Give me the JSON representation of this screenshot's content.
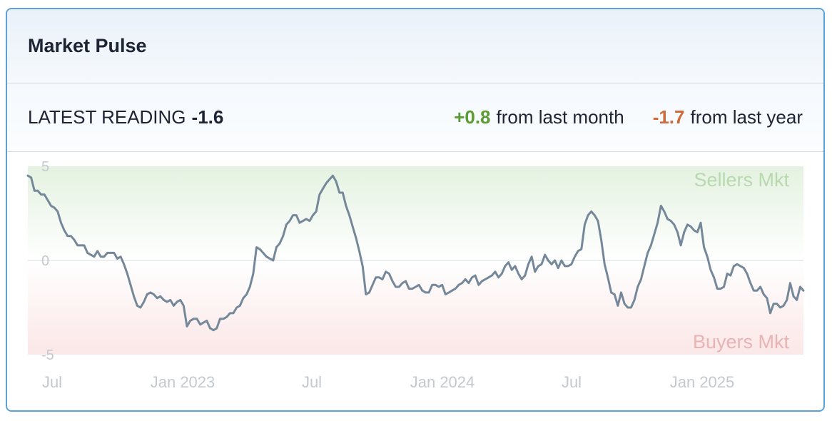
{
  "card": {
    "title": "Market Pulse"
  },
  "stats": {
    "latest_label": "LATEST READING",
    "latest_value": "-1.6",
    "month_change": "+0.8",
    "month_text": "from last month",
    "year_change": "-1.7",
    "year_text": "from last year"
  },
  "colors": {
    "border": "#5aa2d8",
    "line": "#75889a",
    "positive": "#5b9b33",
    "negative": "#d06a3a",
    "sellers_zone": "#e6f3e3",
    "buyers_zone": "#fbe9e9"
  },
  "chart_data": {
    "type": "line",
    "ylim": [
      -5,
      5
    ],
    "y_ticks": [
      "5",
      "0",
      "-5"
    ],
    "x_ticks": [
      "Jul",
      "Jan 2023",
      "Jul",
      "Jan 2024",
      "Jul",
      "Jan 2025"
    ],
    "zone_labels": {
      "top": "Sellers Mkt",
      "bottom": "Buyers Mkt"
    },
    "series": [
      {
        "values": [
          4.5,
          4.4,
          3.7,
          3.7,
          3.5,
          3.5,
          3.2,
          2.9,
          2.8,
          2.6,
          2.0,
          1.6,
          1.3,
          1.3,
          1.1,
          0.8,
          0.8,
          0.8,
          0.4,
          0.3,
          0.2,
          0.5,
          0.2,
          0.2,
          0.4,
          0.4,
          0.4,
          0.1,
          0.2,
          -0.2,
          -0.7,
          -1.3,
          -1.9,
          -2.4,
          -2.5,
          -2.2,
          -1.8,
          -1.7,
          -1.8,
          -2.0,
          -1.9,
          -2.1,
          -2.2,
          -2.1,
          -2.4,
          -2.2,
          -2.1,
          -2.4,
          -3.5,
          -3.2,
          -3.1,
          -3.1,
          -3.4,
          -3.3,
          -3.2,
          -3.6,
          -3.7,
          -3.6,
          -3.1,
          -3.1,
          -3.0,
          -2.8,
          -2.8,
          -2.5,
          -2.4,
          -2.0,
          -1.8,
          -1.4,
          -0.7,
          0.7,
          0.6,
          0.4,
          0.2,
          0.1,
          0.0,
          0.7,
          0.9,
          1.3,
          1.9,
          2.1,
          2.4,
          2.4,
          2.0,
          2.1,
          2.2,
          2.1,
          2.4,
          2.6,
          3.5,
          3.8,
          4.1,
          4.3,
          4.5,
          4.2,
          3.6,
          3.6,
          2.9,
          2.4,
          1.8,
          1.2,
          0.5,
          -0.3,
          -1.8,
          -1.7,
          -1.3,
          -0.9,
          -0.9,
          -1.0,
          -0.6,
          -0.7,
          -1.1,
          -1.4,
          -1.4,
          -1.2,
          -1.1,
          -1.5,
          -1.5,
          -1.4,
          -1.3,
          -1.6,
          -1.7,
          -1.7,
          -1.3,
          -1.3,
          -1.4,
          -1.3,
          -1.8,
          -1.7,
          -1.6,
          -1.5,
          -1.3,
          -1.2,
          -1.0,
          -1.2,
          -0.9,
          -0.8,
          -1.3,
          -1.1,
          -1.0,
          -0.9,
          -0.8,
          -0.6,
          -0.9,
          -0.7,
          -0.3,
          -0.1,
          -0.5,
          -0.3,
          -0.7,
          -1.0,
          -0.8,
          -0.2,
          0.2,
          -0.6,
          -0.3,
          -0.2,
          0.3,
          0.0,
          -0.2,
          0.0,
          -0.4,
          0.0,
          -0.3,
          -0.3,
          -0.2,
          0.2,
          0.5,
          0.6,
          1.9,
          2.4,
          2.6,
          2.4,
          2.1,
          1.1,
          -0.2,
          -0.9,
          -1.7,
          -1.8,
          -2.4,
          -1.7,
          -2.3,
          -2.5,
          -2.5,
          -2.1,
          -1.4,
          -1.0,
          -0.3,
          0.4,
          0.8,
          1.4,
          2.0,
          2.9,
          2.6,
          2.2,
          2.1,
          1.9,
          1.5,
          0.8,
          1.5,
          1.9,
          1.8,
          1.6,
          1.5,
          2.0,
          0.7,
          0.2,
          -0.5,
          -0.9,
          -1.5,
          -1.5,
          -1.4,
          -0.7,
          -0.8,
          -0.3,
          -0.2,
          -0.3,
          -0.4,
          -0.7,
          -1.2,
          -1.6,
          -1.6,
          -1.4,
          -1.8,
          -2.0,
          -2.8,
          -2.3,
          -2.3,
          -2.5,
          -2.4,
          -2.1,
          -1.2,
          -1.9,
          -2.1,
          -1.4,
          -1.6
        ]
      }
    ]
  }
}
